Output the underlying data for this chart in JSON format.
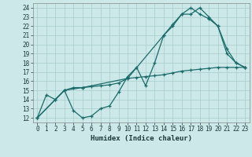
{
  "xlabel": "Humidex (Indice chaleur)",
  "bg_color": "#cde8e8",
  "line_color": "#1a6b6b",
  "grid_color": "#a8cccc",
  "xlim": [
    -0.5,
    23.5
  ],
  "ylim": [
    11.5,
    24.5
  ],
  "xticks": [
    0,
    1,
    2,
    3,
    4,
    5,
    6,
    7,
    8,
    9,
    10,
    11,
    12,
    13,
    14,
    15,
    16,
    17,
    18,
    19,
    20,
    21,
    22,
    23
  ],
  "yticks": [
    12,
    13,
    14,
    15,
    16,
    17,
    18,
    19,
    20,
    21,
    22,
    23,
    24
  ],
  "series1_x": [
    0,
    1,
    2,
    3,
    4,
    5,
    6,
    7,
    8,
    9,
    10,
    11,
    12,
    13,
    14,
    15,
    16,
    17,
    18,
    19,
    20,
    21,
    22,
    23
  ],
  "series1_y": [
    12,
    14.5,
    14,
    15,
    12.8,
    12,
    12.2,
    13,
    13.3,
    14.8,
    16.5,
    17.5,
    15.5,
    18,
    21,
    22,
    23.3,
    23.3,
    24,
    23,
    22,
    19,
    18,
    17.5
  ],
  "series2_x": [
    0,
    2,
    3,
    4,
    5,
    6,
    7,
    8,
    9,
    10,
    11,
    12,
    13,
    14,
    15,
    16,
    17,
    18,
    19,
    20,
    21,
    22,
    23
  ],
  "series2_y": [
    12,
    14,
    15,
    15.3,
    15.3,
    15.4,
    15.5,
    15.6,
    15.8,
    16.3,
    16.4,
    16.5,
    16.6,
    16.7,
    16.9,
    17.1,
    17.2,
    17.3,
    17.4,
    17.5,
    17.5,
    17.5,
    17.5
  ],
  "series3_x": [
    0,
    3,
    5,
    10,
    14,
    15,
    16,
    17,
    18,
    19,
    20,
    21,
    22,
    23
  ],
  "series3_y": [
    12,
    15,
    15.3,
    16.3,
    21,
    22.2,
    23.3,
    24,
    23.3,
    22.8,
    22,
    19.5,
    18,
    17.5
  ]
}
